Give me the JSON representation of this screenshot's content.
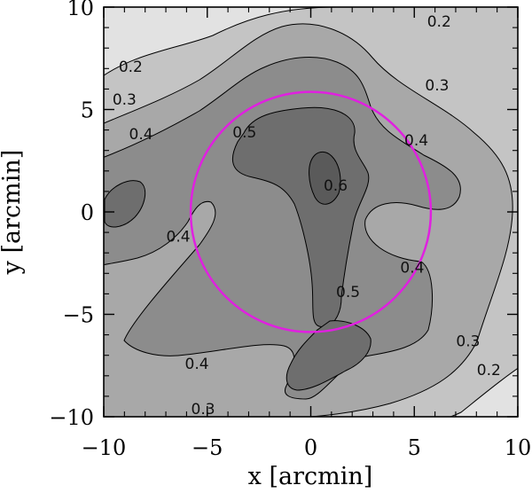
{
  "chart_data": {
    "type": "contour",
    "xlabel": "x [arcmin]",
    "ylabel": "y [arcmin]",
    "xlim": [
      -10,
      10
    ],
    "ylim": [
      -10,
      10
    ],
    "x_ticks": [
      "-10",
      "-5",
      "0",
      "5",
      "10"
    ],
    "y_ticks": [
      "-10",
      "-5",
      "0",
      "5",
      "10"
    ],
    "grid": false,
    "levels": [
      0.2,
      0.3,
      0.4,
      0.5,
      0.6
    ],
    "level_fills": [
      "#e2e2e2",
      "#c4c4c4",
      "#a8a8a8",
      "#8c8c8c",
      "#6e6e6e",
      "#5a5a5a"
    ],
    "circle": {
      "center": [
        0,
        0
      ],
      "radius": 5.8,
      "color": "#e020e0"
    },
    "contour_labels": [
      {
        "text": "0.2",
        "x": 6.2,
        "y": 9.3
      },
      {
        "text": "0.2",
        "x": -8.7,
        "y": 7.1
      },
      {
        "text": "0.2",
        "x": 8.6,
        "y": -7.7
      },
      {
        "text": "0.3",
        "x": -9.0,
        "y": 5.5
      },
      {
        "text": "0.3",
        "x": 6.1,
        "y": 6.2
      },
      {
        "text": "0.3",
        "x": 7.6,
        "y": -6.3
      },
      {
        "text": "0.3",
        "x": -5.2,
        "y": -9.6
      },
      {
        "text": "0.4",
        "x": -8.2,
        "y": 3.8
      },
      {
        "text": "0.4",
        "x": 5.1,
        "y": 3.5
      },
      {
        "text": "0.4",
        "x": -6.4,
        "y": -1.2
      },
      {
        "text": "0.4",
        "x": 4.9,
        "y": -2.7
      },
      {
        "text": "0.4",
        "x": -5.5,
        "y": -7.4
      },
      {
        "text": "0.5",
        "x": -3.2,
        "y": 3.9
      },
      {
        "text": "0.5",
        "x": 1.8,
        "y": -3.9
      },
      {
        "text": "0.6",
        "x": 1.2,
        "y": 1.3
      }
    ]
  }
}
